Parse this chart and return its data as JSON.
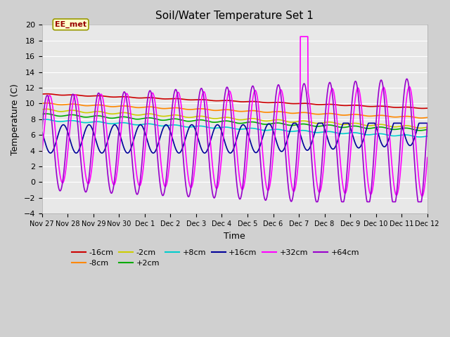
{
  "title": "Soil/Water Temperature Set 1",
  "xlabel": "Time",
  "ylabel": "Temperature (C)",
  "xlim": [
    0,
    15
  ],
  "ylim": [
    -4,
    20
  ],
  "yticks": [
    -4,
    -2,
    0,
    2,
    4,
    6,
    8,
    10,
    12,
    14,
    16,
    18,
    20
  ],
  "xtick_labels": [
    "Nov 27",
    "Nov 28",
    "Nov 29",
    "Nov 30",
    "Dec 1",
    "Dec 2",
    "Dec 3",
    "Dec 4",
    "Dec 5",
    "Dec 6",
    "Dec 7",
    "Dec 8",
    "Dec 9",
    "Dec 10",
    "Dec 11",
    "Dec 12"
  ],
  "xtick_positions": [
    0,
    1,
    2,
    3,
    4,
    5,
    6,
    7,
    8,
    9,
    10,
    11,
    12,
    13,
    14,
    15
  ],
  "fig_bg": "#d0d0d0",
  "plot_bg": "#e8e8e8",
  "annotation_text": "EE_met",
  "annotation_color": "#990000",
  "annotation_bg": "#ffffcc",
  "annotation_border": "#999900",
  "series_colors": {
    "-16cm": "#cc0000",
    "-8cm": "#ff8800",
    "-2cm": "#cccc00",
    "+2cm": "#00aa00",
    "+8cm": "#00cccc",
    "+16cm": "#000099",
    "+32cm": "#ff00ff",
    "+64cm": "#9900cc"
  }
}
